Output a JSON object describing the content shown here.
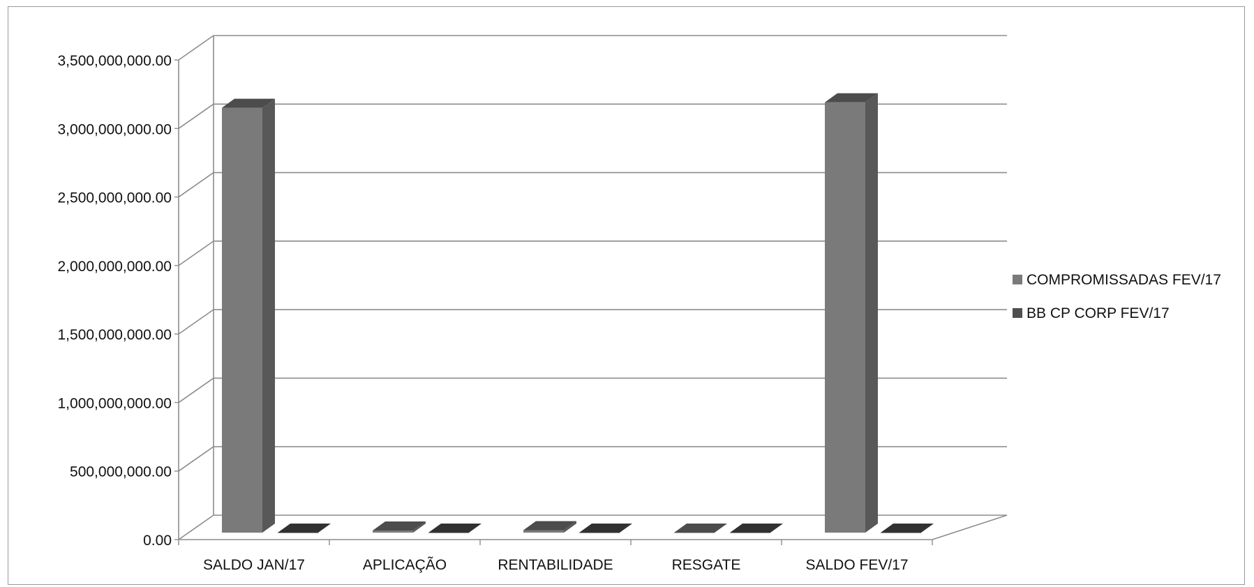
{
  "chart_data": {
    "type": "bar",
    "style": "3d-clustered-column",
    "categories": [
      "SALDO JAN/17",
      "APLICAÇÃO",
      "RENTABILIDADE",
      "RESGATE",
      "SALDO FEV/17"
    ],
    "series": [
      {
        "name": "COMPROMISSADAS FEV/17",
        "color": "#7a7a7a",
        "values": [
          3100000000,
          15000000,
          18000000,
          0,
          3140000000
        ]
      },
      {
        "name": "BB CP CORP FEV/17",
        "color": "#4f4f4f",
        "values": [
          0,
          0,
          0,
          0,
          0
        ]
      }
    ],
    "y_ticks": [
      "0.00",
      "500,000,000.00",
      "1,000,000,000.00",
      "1,500,000,000.00",
      "2,000,000,000.00",
      "2,500,000,000.00",
      "3,000,000,000.00",
      "3,500,000,000.00"
    ],
    "ylim": [
      0,
      3500000000
    ],
    "grid": true,
    "legend": "right",
    "title": "",
    "xlabel": "",
    "ylabel": ""
  }
}
